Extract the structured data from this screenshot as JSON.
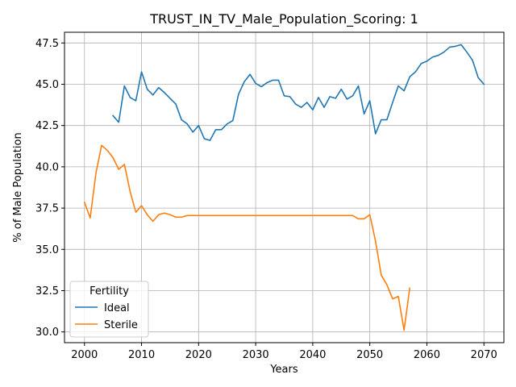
{
  "chart_data": {
    "type": "line",
    "title": "TRUST_IN_TV_Male_Population_Scoring: 1",
    "xlabel": "Years",
    "ylabel": "% of Male Population",
    "xlim": [
      1996.5,
      2073.5
    ],
    "ylim": [
      29.35,
      48.15
    ],
    "xticks": [
      2000,
      2010,
      2020,
      2030,
      2040,
      2050,
      2060,
      2070
    ],
    "yticks": [
      30.0,
      32.5,
      35.0,
      37.5,
      40.0,
      42.5,
      45.0,
      47.5
    ],
    "xtick_labels": [
      "2000",
      "2010",
      "2020",
      "2030",
      "2040",
      "2050",
      "2060",
      "2070"
    ],
    "ytick_labels": [
      "30.0",
      "32.5",
      "35.0",
      "37.5",
      "40.0",
      "42.5",
      "45.0",
      "47.5"
    ],
    "grid": true,
    "legend": {
      "title": "Fertility",
      "position": "lower-left"
    },
    "series": [
      {
        "name": "Ideal",
        "color": "#1f77b4",
        "x": [
          2005,
          2006,
          2007,
          2008,
          2009,
          2010,
          2011,
          2012,
          2013,
          2014,
          2015,
          2016,
          2017,
          2018,
          2019,
          2020,
          2021,
          2022,
          2023,
          2024,
          2025,
          2026,
          2027,
          2028,
          2029,
          2030,
          2031,
          2032,
          2033,
          2034,
          2035,
          2036,
          2037,
          2038,
          2039,
          2040,
          2041,
          2042,
          2043,
          2044,
          2045,
          2046,
          2047,
          2048,
          2049,
          2050,
          2051,
          2052,
          2053,
          2054,
          2055,
          2056,
          2057,
          2058,
          2059,
          2060,
          2061,
          2062,
          2063,
          2064,
          2065,
          2066,
          2067,
          2068,
          2069,
          2070
        ],
        "values": [
          43.1,
          42.7,
          44.9,
          44.2,
          44.0,
          45.75,
          44.7,
          44.35,
          44.8,
          44.5,
          44.15,
          43.8,
          42.85,
          42.6,
          42.1,
          42.5,
          41.7,
          41.6,
          42.25,
          42.25,
          42.6,
          42.8,
          44.4,
          45.15,
          45.6,
          45.05,
          44.85,
          45.1,
          45.25,
          45.25,
          44.3,
          44.25,
          43.8,
          43.6,
          43.9,
          43.45,
          44.2,
          43.6,
          44.25,
          44.15,
          44.7,
          44.1,
          44.3,
          44.9,
          43.2,
          44.0,
          42.0,
          42.85,
          42.85,
          43.9,
          44.9,
          44.6,
          45.45,
          45.75,
          46.25,
          46.4,
          46.65,
          46.75,
          46.95,
          47.25,
          47.3,
          47.4,
          46.95,
          46.45,
          45.4,
          45.0
        ]
      },
      {
        "name": "Sterile",
        "color": "#ff7f0e",
        "x": [
          2000,
          2001,
          2002,
          2003,
          2004,
          2005,
          2006,
          2007,
          2008,
          2009,
          2010,
          2011,
          2012,
          2013,
          2014,
          2015,
          2016,
          2017,
          2018,
          2019,
          2020,
          2021,
          2022,
          2023,
          2024,
          2025,
          2026,
          2027,
          2028,
          2029,
          2030,
          2031,
          2032,
          2033,
          2034,
          2035,
          2036,
          2037,
          2038,
          2039,
          2040,
          2041,
          2042,
          2043,
          2044,
          2045,
          2046,
          2047,
          2048,
          2049,
          2050,
          2051,
          2052,
          2053,
          2054,
          2055,
          2056,
          2057
        ],
        "values": [
          37.85,
          36.9,
          39.6,
          41.3,
          41.0,
          40.55,
          39.85,
          40.15,
          38.5,
          37.25,
          37.65,
          37.1,
          36.7,
          37.1,
          37.2,
          37.1,
          36.95,
          36.95,
          37.05,
          37.05,
          37.05,
          37.05,
          37.05,
          37.05,
          37.05,
          37.05,
          37.05,
          37.05,
          37.05,
          37.05,
          37.05,
          37.05,
          37.05,
          37.05,
          37.05,
          37.05,
          37.05,
          37.05,
          37.05,
          37.05,
          37.05,
          37.05,
          37.05,
          37.05,
          37.05,
          37.05,
          37.05,
          37.05,
          36.85,
          36.85,
          37.1,
          35.5,
          33.45,
          32.85,
          32.0,
          32.15,
          30.1,
          32.65
        ]
      }
    ]
  }
}
